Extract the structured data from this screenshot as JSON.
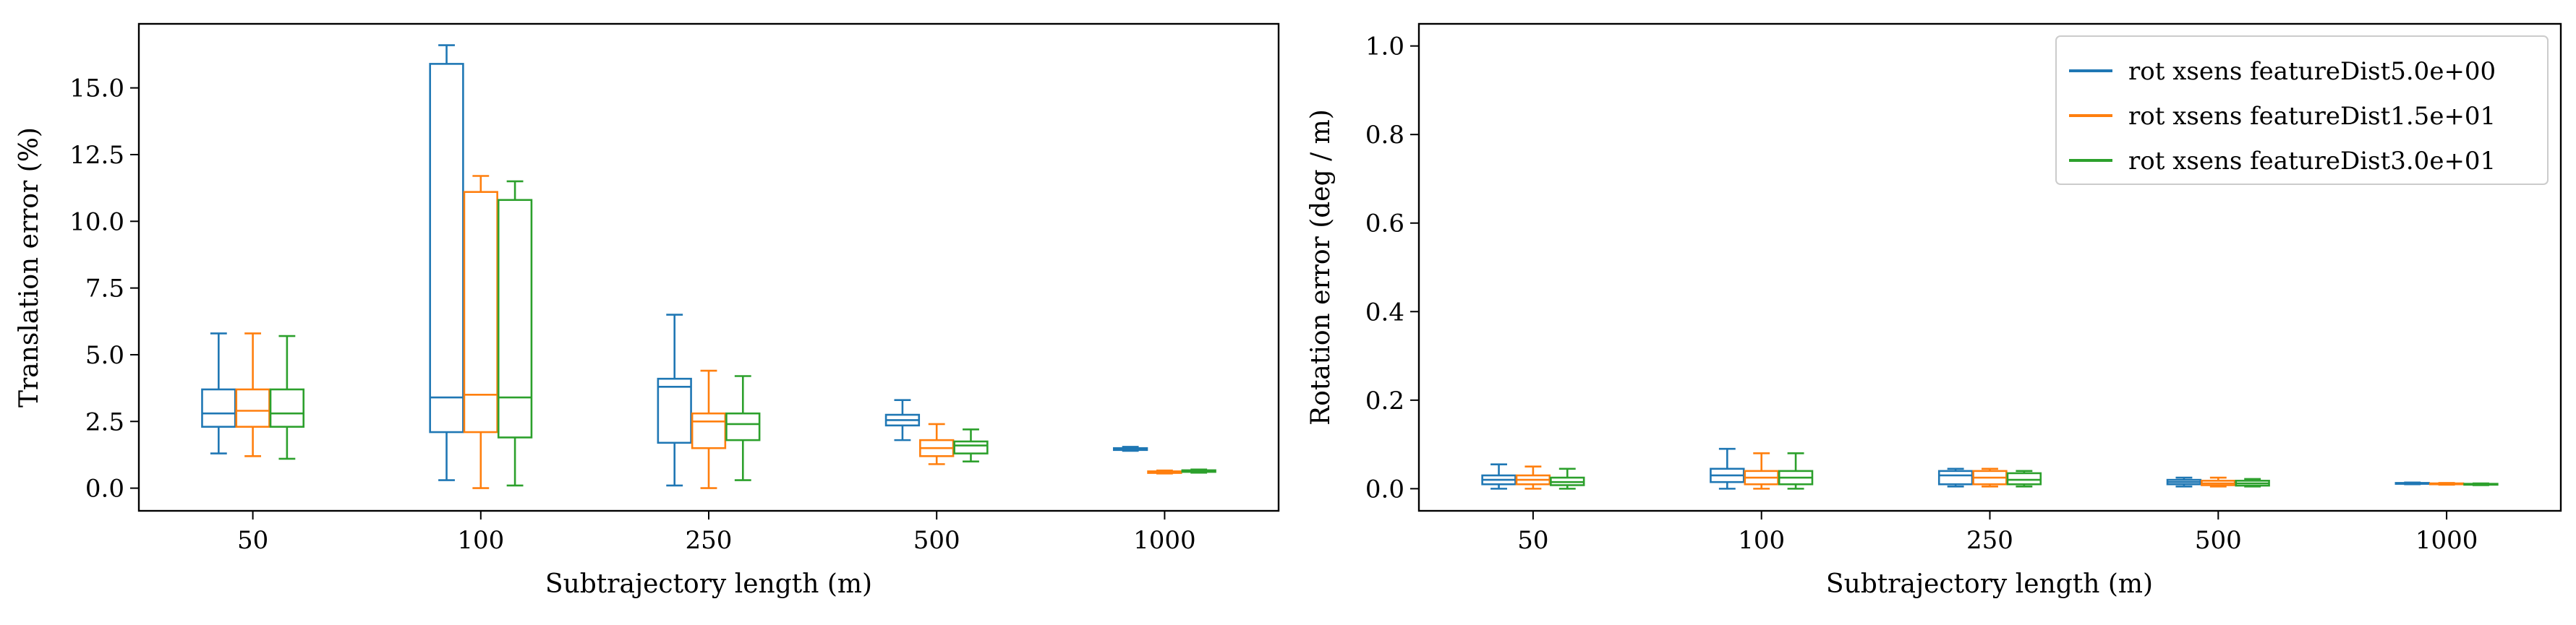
{
  "chart_data": [
    {
      "type": "box",
      "xlabel": "Subtrajectory length (m)",
      "ylabel": "Translation error (%)",
      "ylim": [
        -0.85,
        17.4
      ],
      "yticks": [
        "0.0",
        "2.5",
        "5.0",
        "7.5",
        "10.0",
        "12.5",
        "15.0"
      ],
      "categories": [
        "50",
        "100",
        "250",
        "500",
        "1000"
      ],
      "series": [
        {
          "color": "#1f77b4",
          "boxes": [
            {
              "whislo": 1.3,
              "q1": 2.3,
              "med": 2.8,
              "q3": 3.7,
              "whishi": 5.8
            },
            {
              "whislo": 0.3,
              "q1": 2.1,
              "med": 3.4,
              "q3": 15.9,
              "whishi": 16.6
            },
            {
              "whislo": 0.1,
              "q1": 1.7,
              "med": 3.8,
              "q3": 4.1,
              "whishi": 6.5
            },
            {
              "whislo": 1.8,
              "q1": 2.35,
              "med": 2.55,
              "q3": 2.75,
              "whishi": 3.3
            },
            {
              "whislo": 1.4,
              "q1": 1.43,
              "med": 1.46,
              "q3": 1.5,
              "whishi": 1.55
            }
          ]
        },
        {
          "color": "#ff7f0e",
          "boxes": [
            {
              "whislo": 1.2,
              "q1": 2.3,
              "med": 2.9,
              "q3": 3.7,
              "whishi": 5.8
            },
            {
              "whislo": 0.0,
              "q1": 2.1,
              "med": 3.5,
              "q3": 11.1,
              "whishi": 11.7
            },
            {
              "whislo": 0.0,
              "q1": 1.5,
              "med": 2.5,
              "q3": 2.8,
              "whishi": 4.4
            },
            {
              "whislo": 0.9,
              "q1": 1.2,
              "med": 1.5,
              "q3": 1.8,
              "whishi": 2.4
            },
            {
              "whislo": 0.55,
              "q1": 0.57,
              "med": 0.6,
              "q3": 0.63,
              "whishi": 0.66
            }
          ]
        },
        {
          "color": "#2ca02c",
          "boxes": [
            {
              "whislo": 1.1,
              "q1": 2.3,
              "med": 2.8,
              "q3": 3.7,
              "whishi": 5.7
            },
            {
              "whislo": 0.1,
              "q1": 1.9,
              "med": 3.4,
              "q3": 10.8,
              "whishi": 11.5
            },
            {
              "whislo": 0.3,
              "q1": 1.8,
              "med": 2.4,
              "q3": 2.8,
              "whishi": 4.2
            },
            {
              "whislo": 1.0,
              "q1": 1.3,
              "med": 1.6,
              "q3": 1.75,
              "whishi": 2.2
            },
            {
              "whislo": 0.58,
              "q1": 0.61,
              "med": 0.64,
              "q3": 0.67,
              "whishi": 0.7
            }
          ]
        }
      ]
    },
    {
      "type": "box",
      "xlabel": "Subtrajectory length (m)",
      "ylabel": "Rotation error (deg / m)",
      "ylim": [
        -0.05,
        1.05
      ],
      "yticks": [
        "0.0",
        "0.2",
        "0.4",
        "0.6",
        "0.8",
        "1.0"
      ],
      "categories": [
        "50",
        "100",
        "250",
        "500",
        "1000"
      ],
      "legend": {
        "position": "top-right",
        "entries": [
          "rot xsens featureDist5.0e+00",
          "rot xsens featureDist1.5e+01",
          "rot xsens featureDist3.0e+01"
        ]
      },
      "series": [
        {
          "color": "#1f77b4",
          "boxes": [
            {
              "whislo": 0.0,
              "q1": 0.01,
              "med": 0.02,
              "q3": 0.03,
              "whishi": 0.055
            },
            {
              "whislo": 0.0,
              "q1": 0.015,
              "med": 0.03,
              "q3": 0.045,
              "whishi": 0.09
            },
            {
              "whislo": 0.005,
              "q1": 0.01,
              "med": 0.03,
              "q3": 0.04,
              "whishi": 0.045
            },
            {
              "whislo": 0.005,
              "q1": 0.01,
              "med": 0.015,
              "q3": 0.02,
              "whishi": 0.025
            },
            {
              "whislo": 0.01,
              "q1": 0.011,
              "med": 0.012,
              "q3": 0.013,
              "whishi": 0.014
            }
          ]
        },
        {
          "color": "#ff7f0e",
          "boxes": [
            {
              "whislo": 0.0,
              "q1": 0.01,
              "med": 0.02,
              "q3": 0.03,
              "whishi": 0.05
            },
            {
              "whislo": 0.0,
              "q1": 0.01,
              "med": 0.025,
              "q3": 0.04,
              "whishi": 0.08
            },
            {
              "whislo": 0.005,
              "q1": 0.01,
              "med": 0.025,
              "q3": 0.04,
              "whishi": 0.045
            },
            {
              "whislo": 0.005,
              "q1": 0.008,
              "med": 0.012,
              "q3": 0.018,
              "whishi": 0.025
            },
            {
              "whislo": 0.009,
              "q1": 0.01,
              "med": 0.011,
              "q3": 0.012,
              "whishi": 0.013
            }
          ]
        },
        {
          "color": "#2ca02c",
          "boxes": [
            {
              "whislo": 0.0,
              "q1": 0.008,
              "med": 0.015,
              "q3": 0.025,
              "whishi": 0.045
            },
            {
              "whislo": 0.0,
              "q1": 0.01,
              "med": 0.025,
              "q3": 0.04,
              "whishi": 0.08
            },
            {
              "whislo": 0.005,
              "q1": 0.01,
              "med": 0.02,
              "q3": 0.035,
              "whishi": 0.04
            },
            {
              "whislo": 0.005,
              "q1": 0.007,
              "med": 0.012,
              "q3": 0.018,
              "whishi": 0.022
            },
            {
              "whislo": 0.008,
              "q1": 0.009,
              "med": 0.01,
              "q3": 0.011,
              "whishi": 0.012
            }
          ]
        }
      ]
    }
  ]
}
